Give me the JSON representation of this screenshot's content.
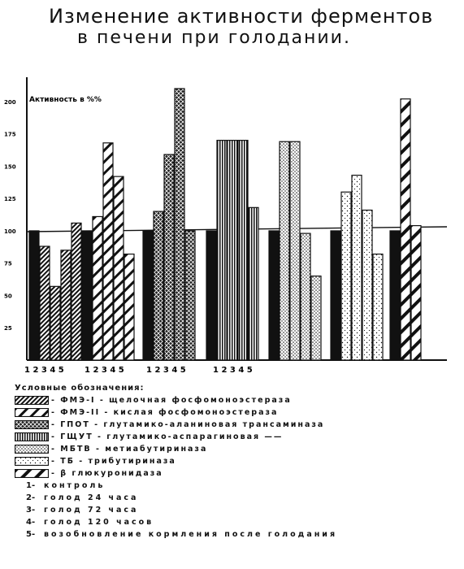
{
  "title": {
    "line1": "Изменение активности ферментов",
    "line2": "в печени при голодании."
  },
  "chart_data": {
    "type": "bar",
    "ylabel": "Активность в %%",
    "ylim": [
      0,
      210
    ],
    "yticks": [
      25,
      50,
      75,
      100,
      125,
      150,
      175,
      200
    ],
    "ytick_labels": [
      "25",
      "50",
      "75",
      "100",
      "125",
      "150",
      "175",
      "200"
    ],
    "reference_line": 100,
    "conditions_per_group": [
      "1",
      "2",
      "3",
      "4",
      "5"
    ],
    "group_tick_labels": [
      "1 2 3 4 5",
      "1 2 3 4 5",
      "1 2 3 4 5",
      "1 2 3 4 5"
    ],
    "series": [
      {
        "name": "ФМЭ-I - щелочная фосфомоноэстераза",
        "pattern": "hatch-left",
        "values": [
          100,
          88,
          57,
          85,
          106
        ]
      },
      {
        "name": "ФМЭ-II - кислая фосфомоноэстераза",
        "pattern": "hatch-wide",
        "values": [
          100,
          111,
          168,
          142,
          82
        ]
      },
      {
        "name": "ГПОТ - глутамико-аланиновая трансаминаза",
        "pattern": "crosshatch",
        "values": [
          100,
          115,
          159,
          210,
          100
        ]
      },
      {
        "name": "ГЩУТ - глутамико-аспарагиновая",
        "pattern": "vertical-lines",
        "values": [
          100,
          170,
          170,
          170,
          118
        ]
      },
      {
        "name": "МБТВ - метиабутириназа",
        "pattern": "dense-dots",
        "values": [
          100,
          169,
          169,
          98,
          65
        ]
      },
      {
        "name": "ТБ - трибутириназа",
        "pattern": "sparse-dots",
        "values": [
          100,
          130,
          143,
          116,
          82
        ]
      },
      {
        "name": "β глюкуронидаза",
        "pattern": "hatch-right",
        "values": [
          100,
          202,
          104,
          null,
          null
        ]
      }
    ]
  },
  "legend": {
    "title": "Условные обозначения:",
    "items": [
      {
        "label": "- ФМЭ-I - щелочная фосфомоноэстераза"
      },
      {
        "label": "- ФМЭ-II - кислая фосфомоноэстераза"
      },
      {
        "label": "- ГПОТ - глутамико-аланиновая трансаминаза"
      },
      {
        "label": "- ГЩУТ - глутамико-аспарагиновая ——"
      },
      {
        "label": "- МБТВ - метиабутириназа"
      },
      {
        "label": "- ТБ - трибутириназа"
      },
      {
        "label": "- β глюкуронидаза"
      }
    ],
    "conditions": [
      {
        "num": "1-",
        "text": "контроль"
      },
      {
        "num": "2-",
        "text": "голод 24 часа"
      },
      {
        "num": "3-",
        "text": "голод 72 часа"
      },
      {
        "num": "4-",
        "text": "голод 120 часов"
      },
      {
        "num": "5-",
        "text": "возобновление кормления после голодания"
      }
    ]
  },
  "colors": {
    "ink": "#111111",
    "paper": "#ffffff"
  }
}
